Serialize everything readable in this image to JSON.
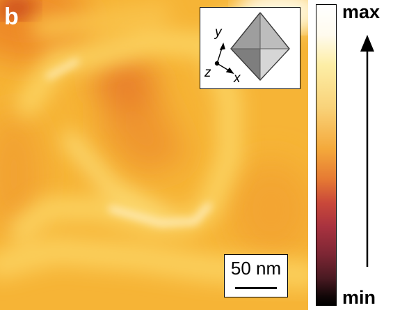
{
  "panel_label": "b",
  "inset": {
    "axes": {
      "y": "y",
      "z": "z",
      "x": "x"
    }
  },
  "scale_bar": {
    "label": "50 nm"
  },
  "colorbar": {
    "max_label": "max",
    "min_label": "min",
    "colors": [
      "#ffffff",
      "#fdeea6",
      "#f4a93b",
      "#c9483a",
      "#7d2634",
      "#000000"
    ]
  }
}
